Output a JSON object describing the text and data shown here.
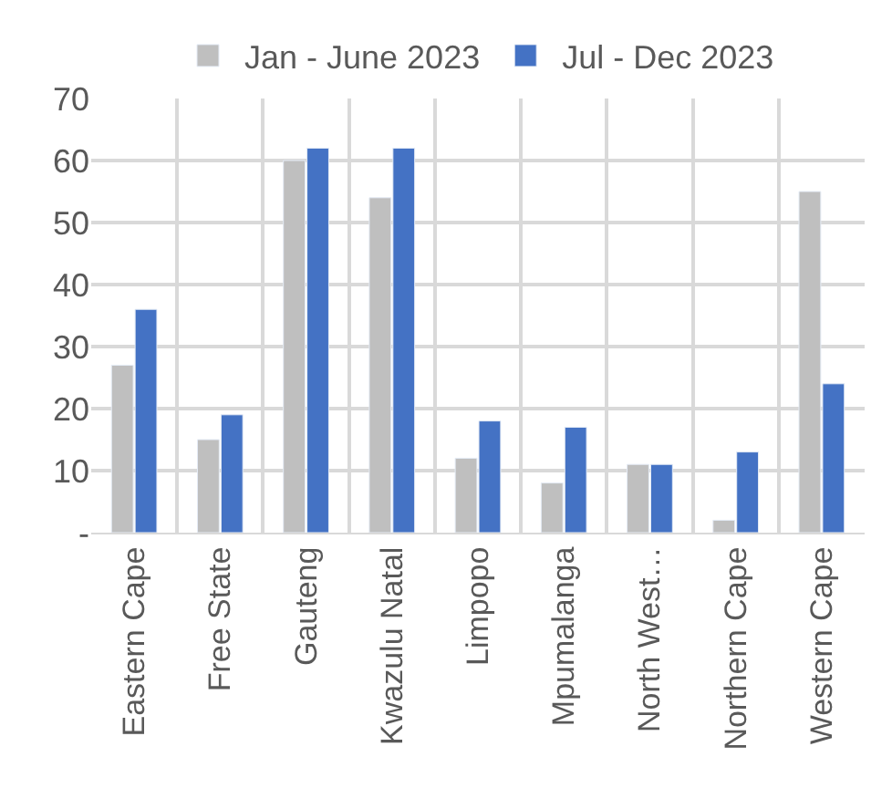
{
  "chart_data": {
    "type": "bar",
    "categories": [
      "Eastern Cape",
      "Free State",
      "Gauteng",
      "Kwazulu Natal",
      "Limpopo",
      "Mpumalanga",
      "North West…",
      "Northern Cape",
      "Western Cape"
    ],
    "series": [
      {
        "name": "Jan - June 2023",
        "color": "#bfbfbf",
        "values": [
          27,
          15,
          60,
          54,
          12,
          8,
          11,
          2,
          55
        ]
      },
      {
        "name": "Jul - Dec 2023",
        "color": "#4472c4",
        "values": [
          36,
          19,
          62,
          62,
          18,
          17,
          11,
          13,
          24
        ]
      }
    ],
    "ylim": [
      0,
      70
    ],
    "yticks": [
      {
        "value": 0,
        "label": "-"
      },
      10,
      20,
      30,
      40,
      50,
      60,
      70
    ],
    "grid": true,
    "legend": "top"
  }
}
